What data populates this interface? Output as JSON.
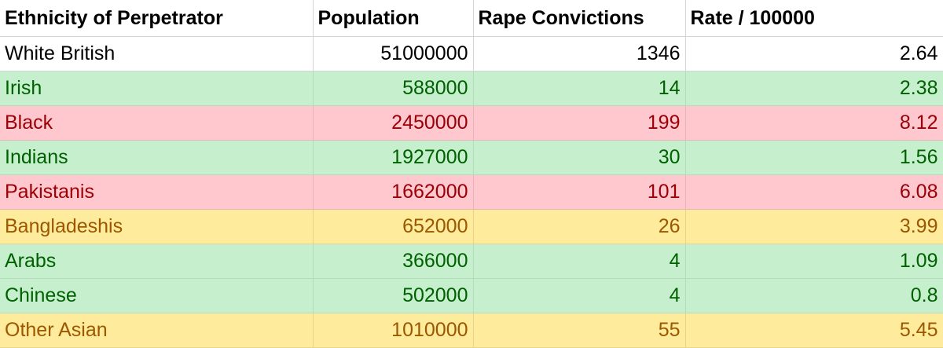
{
  "chart_data": {
    "type": "table",
    "columns": [
      "Ethnicity of Perpetrator",
      "Population",
      "Rape Convictions",
      "Rate / 100000"
    ],
    "rows": [
      {
        "ethnicity": "White British",
        "population": "51000000",
        "convictions": "1346",
        "rate": "2.64",
        "highlight": "none"
      },
      {
        "ethnicity": "Irish",
        "population": "588000",
        "convictions": "14",
        "rate": "2.38",
        "highlight": "green"
      },
      {
        "ethnicity": "Black",
        "population": "2450000",
        "convictions": "199",
        "rate": "8.12",
        "highlight": "red"
      },
      {
        "ethnicity": "Indians",
        "population": "1927000",
        "convictions": "30",
        "rate": "1.56",
        "highlight": "green"
      },
      {
        "ethnicity": "Pakistanis",
        "population": "1662000",
        "convictions": "101",
        "rate": "6.08",
        "highlight": "red"
      },
      {
        "ethnicity": "Bangladeshis",
        "population": "652000",
        "convictions": "26",
        "rate": "3.99",
        "highlight": "yellow"
      },
      {
        "ethnicity": "Arabs",
        "population": "366000",
        "convictions": "4",
        "rate": "1.09",
        "highlight": "green"
      },
      {
        "ethnicity": "Chinese",
        "population": "502000",
        "convictions": "4",
        "rate": "0.8",
        "highlight": "green"
      },
      {
        "ethnicity": "Other Asian",
        "population": "1010000",
        "convictions": "55",
        "rate": "5.45",
        "highlight": "yellow"
      }
    ],
    "colors": {
      "green_fill": "#c6efce",
      "green_text": "#006100",
      "red_fill": "#ffc7ce",
      "red_text": "#9c0006",
      "yellow_fill": "#ffeb9c",
      "yellow_text": "#9c5700"
    }
  }
}
